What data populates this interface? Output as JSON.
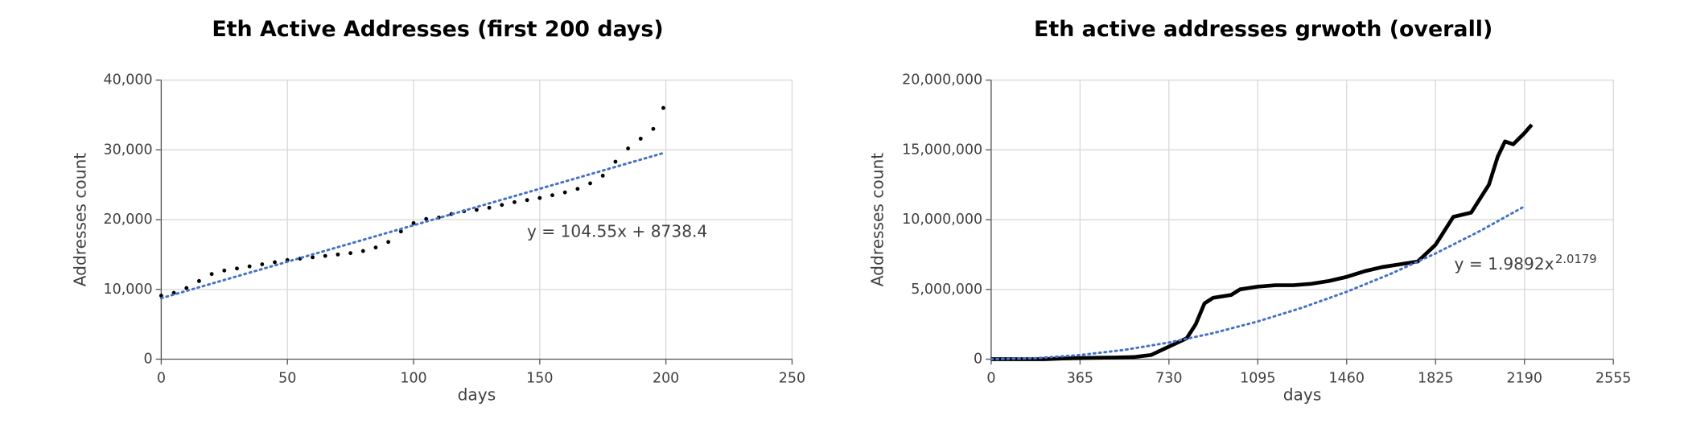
{
  "chart_data": [
    {
      "type": "scatter",
      "title": "Eth Active Addresses (first 200 days)",
      "xlabel": "days",
      "ylabel": "Addresses count",
      "xlim": [
        0,
        250
      ],
      "xticks": [
        0,
        50,
        100,
        150,
        200,
        250
      ],
      "ylim": [
        0,
        40000
      ],
      "yticks": [
        0,
        {
          "value": 10000,
          "label": "10,000"
        },
        {
          "value": 20000,
          "label": "20,000"
        },
        {
          "value": 30000,
          "label": "30,000"
        },
        {
          "value": 40000,
          "label": "40,000"
        }
      ],
      "grid": true,
      "series": [
        {
          "color": "#000000",
          "x": [
            0,
            5,
            10,
            15,
            20,
            25,
            30,
            35,
            40,
            45,
            50,
            55,
            60,
            65,
            70,
            75,
            80,
            85,
            90,
            95,
            100,
            105,
            110,
            115,
            120,
            125,
            130,
            135,
            140,
            145,
            150,
            155,
            160,
            165,
            170,
            175,
            180,
            185,
            190,
            195,
            199
          ],
          "values": [
            9100,
            9500,
            10200,
            11200,
            12200,
            12700,
            13000,
            13300,
            13600,
            13900,
            14200,
            14400,
            14600,
            14800,
            15000,
            15200,
            15500,
            16000,
            16800,
            18300,
            19500,
            20100,
            20300,
            20800,
            21200,
            21400,
            21700,
            22100,
            22500,
            22800,
            23100,
            23500,
            23900,
            24400,
            25200,
            26300,
            28300,
            30200,
            31600,
            33000,
            36000
          ]
        },
        {
          "color": "#4472c4",
          "style": "dotted",
          "x": [
            0,
            199
          ],
          "values": [
            8738,
            29543
          ]
        }
      ],
      "annotation": "y = 104.55x + 8738.4"
    },
    {
      "type": "line",
      "title": "Eth active addresses grwoth (overall)",
      "xlabel": "days",
      "ylabel": "Addresses count",
      "xlim": [
        0,
        2555
      ],
      "xticks": [
        0,
        365,
        730,
        1095,
        1460,
        1825,
        2190,
        2555
      ],
      "ylim": [
        0,
        20000000
      ],
      "yticks": [
        0,
        {
          "value": 5000000,
          "label": "5,000,000"
        },
        {
          "value": 10000000,
          "label": "10,000,000"
        },
        {
          "value": 15000000,
          "label": "15,000,000"
        },
        {
          "value": 20000000,
          "label": "20,000,000"
        }
      ],
      "grid": true,
      "series": [
        {
          "color": "#000000",
          "x": [
            0,
            73,
            146,
            219,
            292,
            365,
            438,
            511,
            584,
            657,
            730,
            803,
            840,
            876,
            912,
            949,
            985,
            1022,
            1095,
            1168,
            1241,
            1314,
            1387,
            1460,
            1533,
            1606,
            1679,
            1752,
            1825,
            1898,
            1971,
            2044,
            2080,
            2110,
            2144,
            2190,
            2220
          ],
          "values": [
            0,
            0,
            0,
            0,
            50000,
            80000,
            100000,
            120000,
            150000,
            300000,
            900000,
            1500000,
            2500000,
            4000000,
            4400000,
            4500000,
            4600000,
            5000000,
            5200000,
            5300000,
            5300000,
            5400000,
            5600000,
            5900000,
            6300000,
            6600000,
            6800000,
            7000000,
            8200000,
            10200000,
            10500000,
            12500000,
            14500000,
            15600000,
            15400000,
            16200000,
            16800000
          ]
        },
        {
          "color": "#4472c4",
          "style": "dotted",
          "x": [
            0,
            182,
            365,
            547,
            730,
            912,
            1095,
            1277,
            1460,
            1642,
            1825,
            2007,
            2190
          ],
          "values": [
            0,
            72300,
            294500,
            666300,
            1192800,
            1869000,
            2703400,
            3687000,
            4830800,
            6123700,
            7577600,
            9180600,
            10949600
          ]
        }
      ],
      "annotation": "y = 1.9892x",
      "annotation_exponent": "2.0179"
    }
  ]
}
